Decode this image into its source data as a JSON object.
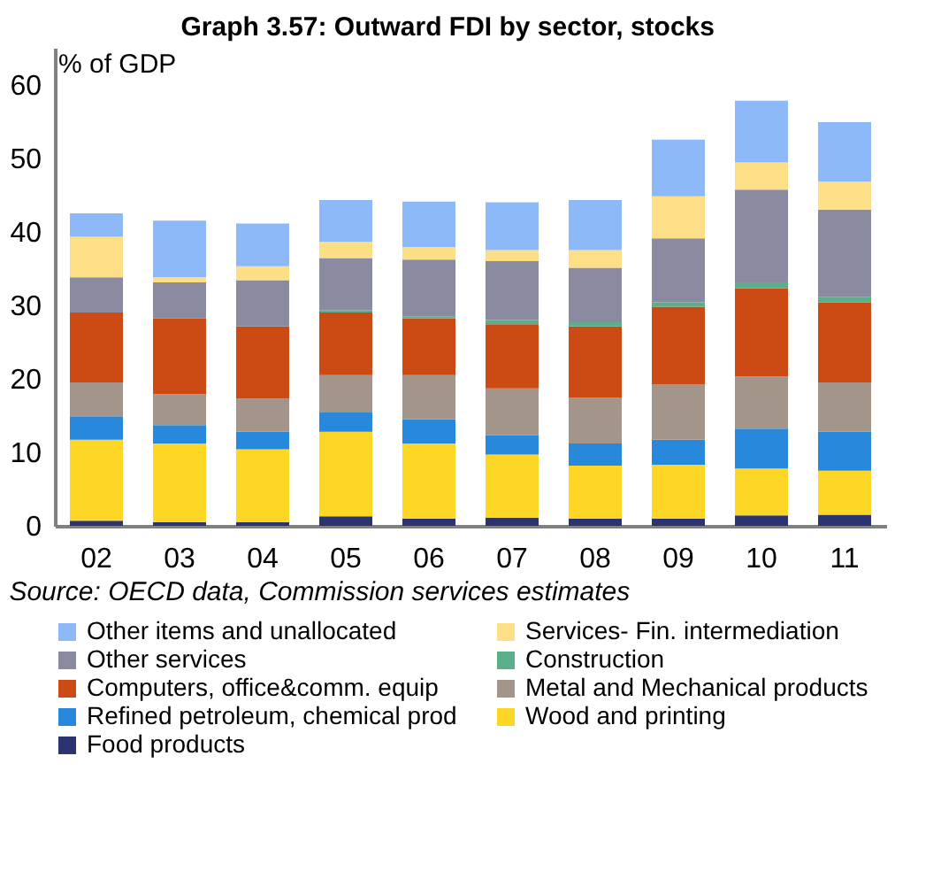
{
  "chart_data": {
    "type": "bar",
    "stacked": true,
    "title": "Graph 3.57: Outward FDI by sector, stocks",
    "ylabel": "% of GDP",
    "categories": [
      "02",
      "03",
      "04",
      "05",
      "06",
      "07",
      "08",
      "09",
      "10",
      "11"
    ],
    "series": [
      {
        "name": "Food products",
        "color": "#2b3370",
        "values": [
          0.7,
          0.5,
          0.5,
          1.3,
          1.0,
          1.1,
          1.0,
          1.0,
          1.4,
          1.5
        ]
      },
      {
        "name": "Wood and printing",
        "color": "#fed726",
        "values": [
          11.0,
          10.7,
          9.9,
          11.5,
          10.2,
          8.6,
          7.2,
          7.3,
          6.4,
          6.0
        ]
      },
      {
        "name": "Refined petroleum, chemical prod",
        "color": "#2888dc",
        "values": [
          3.2,
          2.5,
          2.4,
          2.6,
          3.3,
          2.6,
          3.0,
          3.4,
          5.4,
          5.3
        ]
      },
      {
        "name": "Metal and Mechanical products",
        "color": "#a39589",
        "values": [
          4.6,
          4.2,
          4.5,
          5.1,
          6.0,
          6.4,
          6.2,
          7.5,
          7.1,
          6.7
        ]
      },
      {
        "name": "Computers, office&comm. equip",
        "color": "#cc4a14",
        "values": [
          9.5,
          10.3,
          9.8,
          8.5,
          7.7,
          8.7,
          9.7,
          10.6,
          12.0,
          10.9
        ]
      },
      {
        "name": "Construction",
        "color": "#5aae8a",
        "values": [
          0,
          0,
          0,
          0.3,
          0.3,
          0.6,
          0.6,
          0.6,
          0.8,
          0.7
        ]
      },
      {
        "name": "Other services",
        "color": "#8a8aa0",
        "values": [
          4.8,
          4.9,
          6.3,
          7.1,
          7.7,
          8.0,
          7.4,
          8.7,
          12.6,
          11.9
        ]
      },
      {
        "name": "Services- Fin. intermediation",
        "color": "#fddf87",
        "values": [
          5.5,
          0.7,
          1.9,
          2.2,
          1.7,
          1.5,
          2.4,
          5.7,
          3.7,
          3.8
        ]
      },
      {
        "name": "Other items and unallocated",
        "color": "#8db9f8",
        "values": [
          3.2,
          7.7,
          5.8,
          5.7,
          6.2,
          6.5,
          6.8,
          7.7,
          8.4,
          8.1
        ]
      }
    ],
    "ylim": [
      0,
      65
    ],
    "yticks": [
      0,
      10,
      20,
      30,
      40,
      50,
      60
    ],
    "grid": false,
    "legend": "bottom",
    "annotations": [
      "Source: OECD data, Commission services estimates"
    ]
  }
}
